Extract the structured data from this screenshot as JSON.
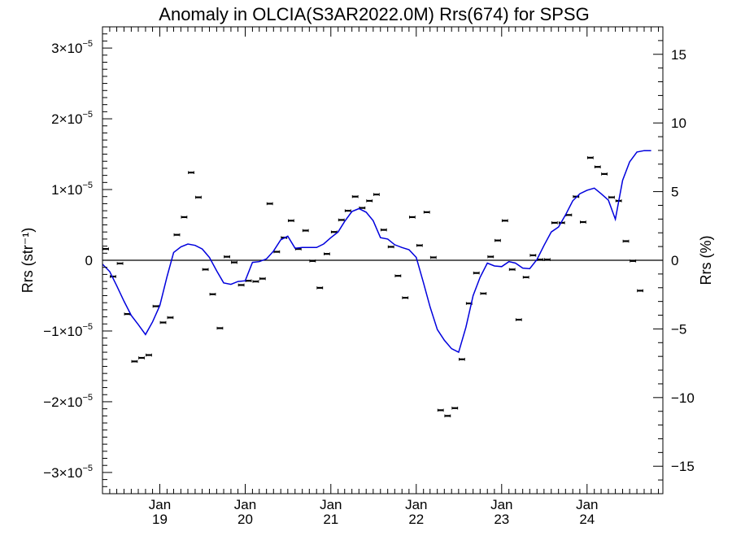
{
  "chart_data": {
    "type": "line",
    "title": "Anomaly in OLCIA(S3AR2022.0M) Rrs(674) for SPSG",
    "ylabel_left": "Rrs (str⁻¹)",
    "ylabel_right": "Rrs (%)",
    "ylim_left": [
      -3.3e-05,
      3.3e-05
    ],
    "ylim_right": [
      -17,
      17
    ],
    "xlim": [
      "2018-05-01",
      "2024-11-20"
    ],
    "left_ticks": [
      {
        "value": 3e-05,
        "mantissa": "3×10",
        "exp": "−5"
      },
      {
        "value": 2e-05,
        "mantissa": "2×10",
        "exp": "−5"
      },
      {
        "value": 1e-05,
        "mantissa": "1×10",
        "exp": "−5"
      },
      {
        "value": 0,
        "mantissa": "0",
        "exp": ""
      },
      {
        "value": -1e-05,
        "mantissa": "−1×10",
        "exp": "−5"
      },
      {
        "value": -2e-05,
        "mantissa": "−2×10",
        "exp": "−5"
      },
      {
        "value": -3e-05,
        "mantissa": "−3×10",
        "exp": "−5"
      }
    ],
    "right_ticks": [
      {
        "value": 15,
        "label": "15"
      },
      {
        "value": 10,
        "label": "10"
      },
      {
        "value": 5,
        "label": "5"
      },
      {
        "value": 0,
        "label": "0"
      },
      {
        "value": -5,
        "label": "−5"
      },
      {
        "value": -10,
        "label": "−10"
      },
      {
        "value": -15,
        "label": "−15"
      }
    ],
    "x_ticks": [
      {
        "date": "2019-01-01",
        "month": "Jan",
        "year": "19"
      },
      {
        "date": "2020-01-01",
        "month": "Jan",
        "year": "20"
      },
      {
        "date": "2021-01-01",
        "month": "Jan",
        "year": "21"
      },
      {
        "date": "2022-01-01",
        "month": "Jan",
        "year": "22"
      },
      {
        "date": "2023-01-01",
        "month": "Jan",
        "year": "23"
      },
      {
        "date": "2024-01-01",
        "month": "Jan",
        "year": "24"
      }
    ],
    "series": [
      {
        "type": "scatter",
        "marker": "error-bar",
        "color": "#000000",
        "points": [
          [
            "2018-05-15",
            1.6e-06
          ],
          [
            "2018-06-15",
            -2.3e-06
          ],
          [
            "2018-07-15",
            -4.5e-07
          ],
          [
            "2018-08-15",
            -7.6e-06
          ],
          [
            "2018-09-15",
            -1.43e-05
          ],
          [
            "2018-10-15",
            -1.38e-05
          ],
          [
            "2018-11-15",
            -1.34e-05
          ],
          [
            "2018-12-15",
            -6.5e-06
          ],
          [
            "2019-01-15",
            -8.8e-06
          ],
          [
            "2019-02-15",
            -8.1e-06
          ],
          [
            "2019-03-15",
            3.6e-06
          ],
          [
            "2019-04-15",
            6.1e-06
          ],
          [
            "2019-05-15",
            1.24e-05
          ],
          [
            "2019-06-15",
            8.9e-06
          ],
          [
            "2019-07-15",
            -1.3e-06
          ],
          [
            "2019-08-15",
            -4.8e-06
          ],
          [
            "2019-09-15",
            -9.6e-06
          ],
          [
            "2019-10-15",
            5e-07
          ],
          [
            "2019-11-15",
            -3e-07
          ],
          [
            "2019-12-15",
            -3.5e-06
          ],
          [
            "2020-01-15",
            -2.9e-06
          ],
          [
            "2020-02-15",
            -3e-06
          ],
          [
            "2020-03-15",
            -2.6e-06
          ],
          [
            "2020-04-15",
            8e-06
          ],
          [
            "2020-05-15",
            1.2e-06
          ],
          [
            "2020-06-15",
            3.2e-06
          ],
          [
            "2020-07-15",
            5.6e-06
          ],
          [
            "2020-08-15",
            1.6e-06
          ],
          [
            "2020-09-15",
            4.2e-06
          ],
          [
            "2020-10-15",
            -1e-07
          ],
          [
            "2020-11-15",
            -3.9e-06
          ],
          [
            "2020-12-15",
            9e-07
          ],
          [
            "2021-01-15",
            4e-06
          ],
          [
            "2021-02-15",
            5.7e-06
          ],
          [
            "2021-03-15",
            7e-06
          ],
          [
            "2021-04-15",
            9e-06
          ],
          [
            "2021-05-15",
            7.4e-06
          ],
          [
            "2021-06-15",
            8.4e-06
          ],
          [
            "2021-07-15",
            9.3e-06
          ],
          [
            "2021-08-15",
            4.3e-06
          ],
          [
            "2021-09-15",
            1.9e-06
          ],
          [
            "2021-10-15",
            -2.2e-06
          ],
          [
            "2021-11-15",
            -5.3e-06
          ],
          [
            "2021-12-15",
            6.1e-06
          ],
          [
            "2022-01-15",
            2.1e-06
          ],
          [
            "2022-02-15",
            6.8e-06
          ],
          [
            "2022-03-15",
            4e-07
          ],
          [
            "2022-04-15",
            -2.12e-05
          ],
          [
            "2022-05-15",
            -2.2e-05
          ],
          [
            "2022-06-15",
            -2.09e-05
          ],
          [
            "2022-07-15",
            -1.4e-05
          ],
          [
            "2022-08-15",
            -6.1e-06
          ],
          [
            "2022-09-15",
            -1.8e-06
          ],
          [
            "2022-10-15",
            -4.7e-06
          ],
          [
            "2022-11-15",
            5e-07
          ],
          [
            "2022-12-15",
            2.8e-06
          ],
          [
            "2023-01-15",
            5.6e-06
          ],
          [
            "2023-02-15",
            -1.3e-06
          ],
          [
            "2023-03-15",
            -8.4e-06
          ],
          [
            "2023-04-15",
            -2.4e-06
          ],
          [
            "2023-05-15",
            7e-07
          ],
          [
            "2023-06-15",
            1e-07
          ],
          [
            "2023-07-15",
            1e-07
          ],
          [
            "2023-08-15",
            5.3e-06
          ],
          [
            "2023-09-15",
            5.3e-06
          ],
          [
            "2023-10-15",
            6.4e-06
          ],
          [
            "2023-11-15",
            9e-06
          ],
          [
            "2023-12-15",
            5.4e-06
          ],
          [
            "2024-01-15",
            1.45e-05
          ],
          [
            "2024-02-15",
            1.32e-05
          ],
          [
            "2024-03-15",
            1.22e-05
          ],
          [
            "2024-04-15",
            8.9e-06
          ],
          [
            "2024-05-15",
            8.4e-06
          ],
          [
            "2024-06-15",
            2.7e-06
          ],
          [
            "2024-07-15",
            -1e-07
          ],
          [
            "2024-08-15",
            -4.3e-06
          ]
        ]
      },
      {
        "type": "line",
        "color": "#0000dd",
        "points": [
          [
            "2018-05-01",
            -5.5e-07
          ],
          [
            "2018-06-01",
            -1.6e-06
          ],
          [
            "2018-07-01",
            -3.6e-06
          ],
          [
            "2018-08-01",
            -5.8e-06
          ],
          [
            "2018-09-01",
            -7.8e-06
          ],
          [
            "2018-10-01",
            -9.1e-06
          ],
          [
            "2018-11-01",
            -1.05e-05
          ],
          [
            "2018-12-01",
            -8.7e-06
          ],
          [
            "2019-01-01",
            -6.4e-06
          ],
          [
            "2019-02-01",
            -2.3e-06
          ],
          [
            "2019-03-01",
            1.1e-06
          ],
          [
            "2019-04-01",
            1.9e-06
          ],
          [
            "2019-05-01",
            2.3e-06
          ],
          [
            "2019-06-01",
            2.1e-06
          ],
          [
            "2019-07-01",
            1.6e-06
          ],
          [
            "2019-08-01",
            4e-07
          ],
          [
            "2019-09-01",
            -1.5e-06
          ],
          [
            "2019-10-01",
            -3.2e-06
          ],
          [
            "2019-11-01",
            -3.4e-06
          ],
          [
            "2019-12-01",
            -3e-06
          ],
          [
            "2020-01-01",
            -2.9e-06
          ],
          [
            "2020-02-01",
            -3e-07
          ],
          [
            "2020-03-01",
            -2e-07
          ],
          [
            "2020-04-01",
            2e-07
          ],
          [
            "2020-05-01",
            1.3e-06
          ],
          [
            "2020-06-01",
            2.9e-06
          ],
          [
            "2020-07-01",
            3.4e-06
          ],
          [
            "2020-08-01",
            1.7e-06
          ],
          [
            "2020-09-01",
            1.8e-06
          ],
          [
            "2020-10-01",
            1.8e-06
          ],
          [
            "2020-11-01",
            1.8e-06
          ],
          [
            "2020-12-01",
            2.3e-06
          ],
          [
            "2021-01-01",
            3.2e-06
          ],
          [
            "2021-02-01",
            4e-06
          ],
          [
            "2021-03-01",
            5.5e-06
          ],
          [
            "2021-04-01",
            6.9e-06
          ],
          [
            "2021-05-01",
            7.3e-06
          ],
          [
            "2021-06-01",
            6.8e-06
          ],
          [
            "2021-07-01",
            5.6e-06
          ],
          [
            "2021-08-01",
            3.2e-06
          ],
          [
            "2021-09-01",
            3e-06
          ],
          [
            "2021-10-01",
            2.2e-06
          ],
          [
            "2021-11-01",
            1.8e-06
          ],
          [
            "2021-12-01",
            1.5e-06
          ],
          [
            "2022-01-01",
            4e-07
          ],
          [
            "2022-02-01",
            -3.2e-06
          ],
          [
            "2022-03-01",
            -6.6e-06
          ],
          [
            "2022-04-01",
            -9.8e-06
          ],
          [
            "2022-05-01",
            -1.13e-05
          ],
          [
            "2022-06-01",
            -1.25e-05
          ],
          [
            "2022-07-01",
            -1.3e-05
          ],
          [
            "2022-08-01",
            -9.5e-06
          ],
          [
            "2022-09-01",
            -5e-06
          ],
          [
            "2022-10-01",
            -2.4e-06
          ],
          [
            "2022-11-01",
            -4e-07
          ],
          [
            "2022-12-01",
            -8e-07
          ],
          [
            "2023-01-01",
            -9e-07
          ],
          [
            "2023-02-01",
            -2e-07
          ],
          [
            "2023-03-01",
            -4e-07
          ],
          [
            "2023-04-01",
            -1.1e-06
          ],
          [
            "2023-05-01",
            -1.2e-06
          ],
          [
            "2023-06-01",
            1e-07
          ],
          [
            "2023-07-01",
            2.1e-06
          ],
          [
            "2023-08-01",
            4e-06
          ],
          [
            "2023-09-01",
            4.7e-06
          ],
          [
            "2023-10-01",
            6.4e-06
          ],
          [
            "2023-11-01",
            8.4e-06
          ],
          [
            "2023-12-01",
            9.4e-06
          ],
          [
            "2024-01-01",
            9.9e-06
          ],
          [
            "2024-02-01",
            1.02e-05
          ],
          [
            "2024-03-01",
            9.4e-06
          ],
          [
            "2024-04-01",
            8.5e-06
          ],
          [
            "2024-05-01",
            5.8e-06
          ],
          [
            "2024-06-01",
            1.13e-05
          ],
          [
            "2024-07-01",
            1.39e-05
          ],
          [
            "2024-08-01",
            1.53e-05
          ],
          [
            "2024-09-01",
            1.55e-05
          ],
          [
            "2024-10-01",
            1.55e-05
          ]
        ]
      }
    ],
    "zero_line": true,
    "grid": false,
    "legend": "none"
  }
}
